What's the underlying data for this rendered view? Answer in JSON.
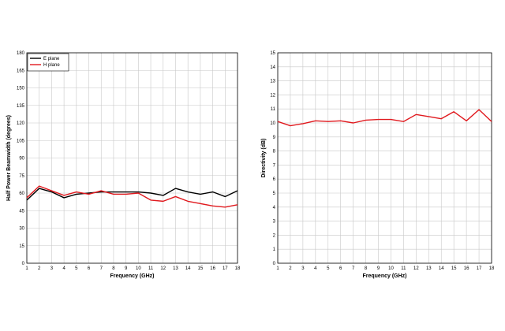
{
  "chart_data": [
    {
      "type": "line",
      "title": "",
      "xlabel": "Frequency (GHz)",
      "ylabel": "Half Power Beamwidth (degrees)",
      "x": [
        1,
        2,
        3,
        4,
        5,
        6,
        7,
        8,
        9,
        10,
        11,
        12,
        13,
        14,
        15,
        16,
        17,
        18
      ],
      "xlim": [
        1,
        18
      ],
      "ylim": [
        0,
        180
      ],
      "xticks": [
        "1",
        "2",
        "3",
        "4",
        "5",
        "6",
        "7",
        "8",
        "9",
        "10",
        "11",
        "12",
        "13",
        "14",
        "15",
        "16",
        "17",
        "18"
      ],
      "yticks": [
        "0",
        "15",
        "30",
        "45",
        "60",
        "75",
        "90",
        "105",
        "120",
        "135",
        "150",
        "165",
        "180"
      ],
      "grid": true,
      "legend": "top-left",
      "series": [
        {
          "name": "E plane",
          "color": "#000000",
          "values": [
            54,
            64,
            61,
            56,
            59,
            60,
            61,
            61,
            61,
            61,
            60,
            58,
            64,
            61,
            59,
            61,
            57,
            62
          ]
        },
        {
          "name": "H plane",
          "color": "#e0191e",
          "values": [
            56,
            66,
            62,
            58,
            61,
            59,
            62,
            59,
            59,
            60,
            54,
            53,
            57,
            53,
            51,
            49,
            48,
            50
          ]
        }
      ]
    },
    {
      "type": "line",
      "title": "",
      "xlabel": "Frequency (GHz)",
      "ylabel": "Directivity (dB)",
      "x": [
        1,
        2,
        3,
        4,
        5,
        6,
        7,
        8,
        9,
        10,
        11,
        12,
        13,
        14,
        15,
        16,
        17,
        18
      ],
      "xlim": [
        1,
        18
      ],
      "ylim": [
        0,
        15
      ],
      "xticks": [
        "1",
        "2",
        "3",
        "4",
        "5",
        "6",
        "7",
        "8",
        "9",
        "10",
        "11",
        "12",
        "13",
        "14",
        "15",
        "16",
        "17",
        "18"
      ],
      "yticks": [
        "0",
        "1",
        "2",
        "3",
        "4",
        "5",
        "6",
        "7",
        "8",
        "9",
        "10",
        "11",
        "12",
        "13",
        "14",
        "15"
      ],
      "grid": true,
      "series": [
        {
          "color": "#e0191e",
          "values": [
            10.1,
            9.8,
            9.95,
            10.15,
            10.1,
            10.15,
            10.0,
            10.2,
            10.25,
            10.25,
            10.1,
            10.6,
            10.45,
            10.3,
            10.8,
            10.15,
            10.95,
            10.1
          ]
        }
      ]
    }
  ]
}
